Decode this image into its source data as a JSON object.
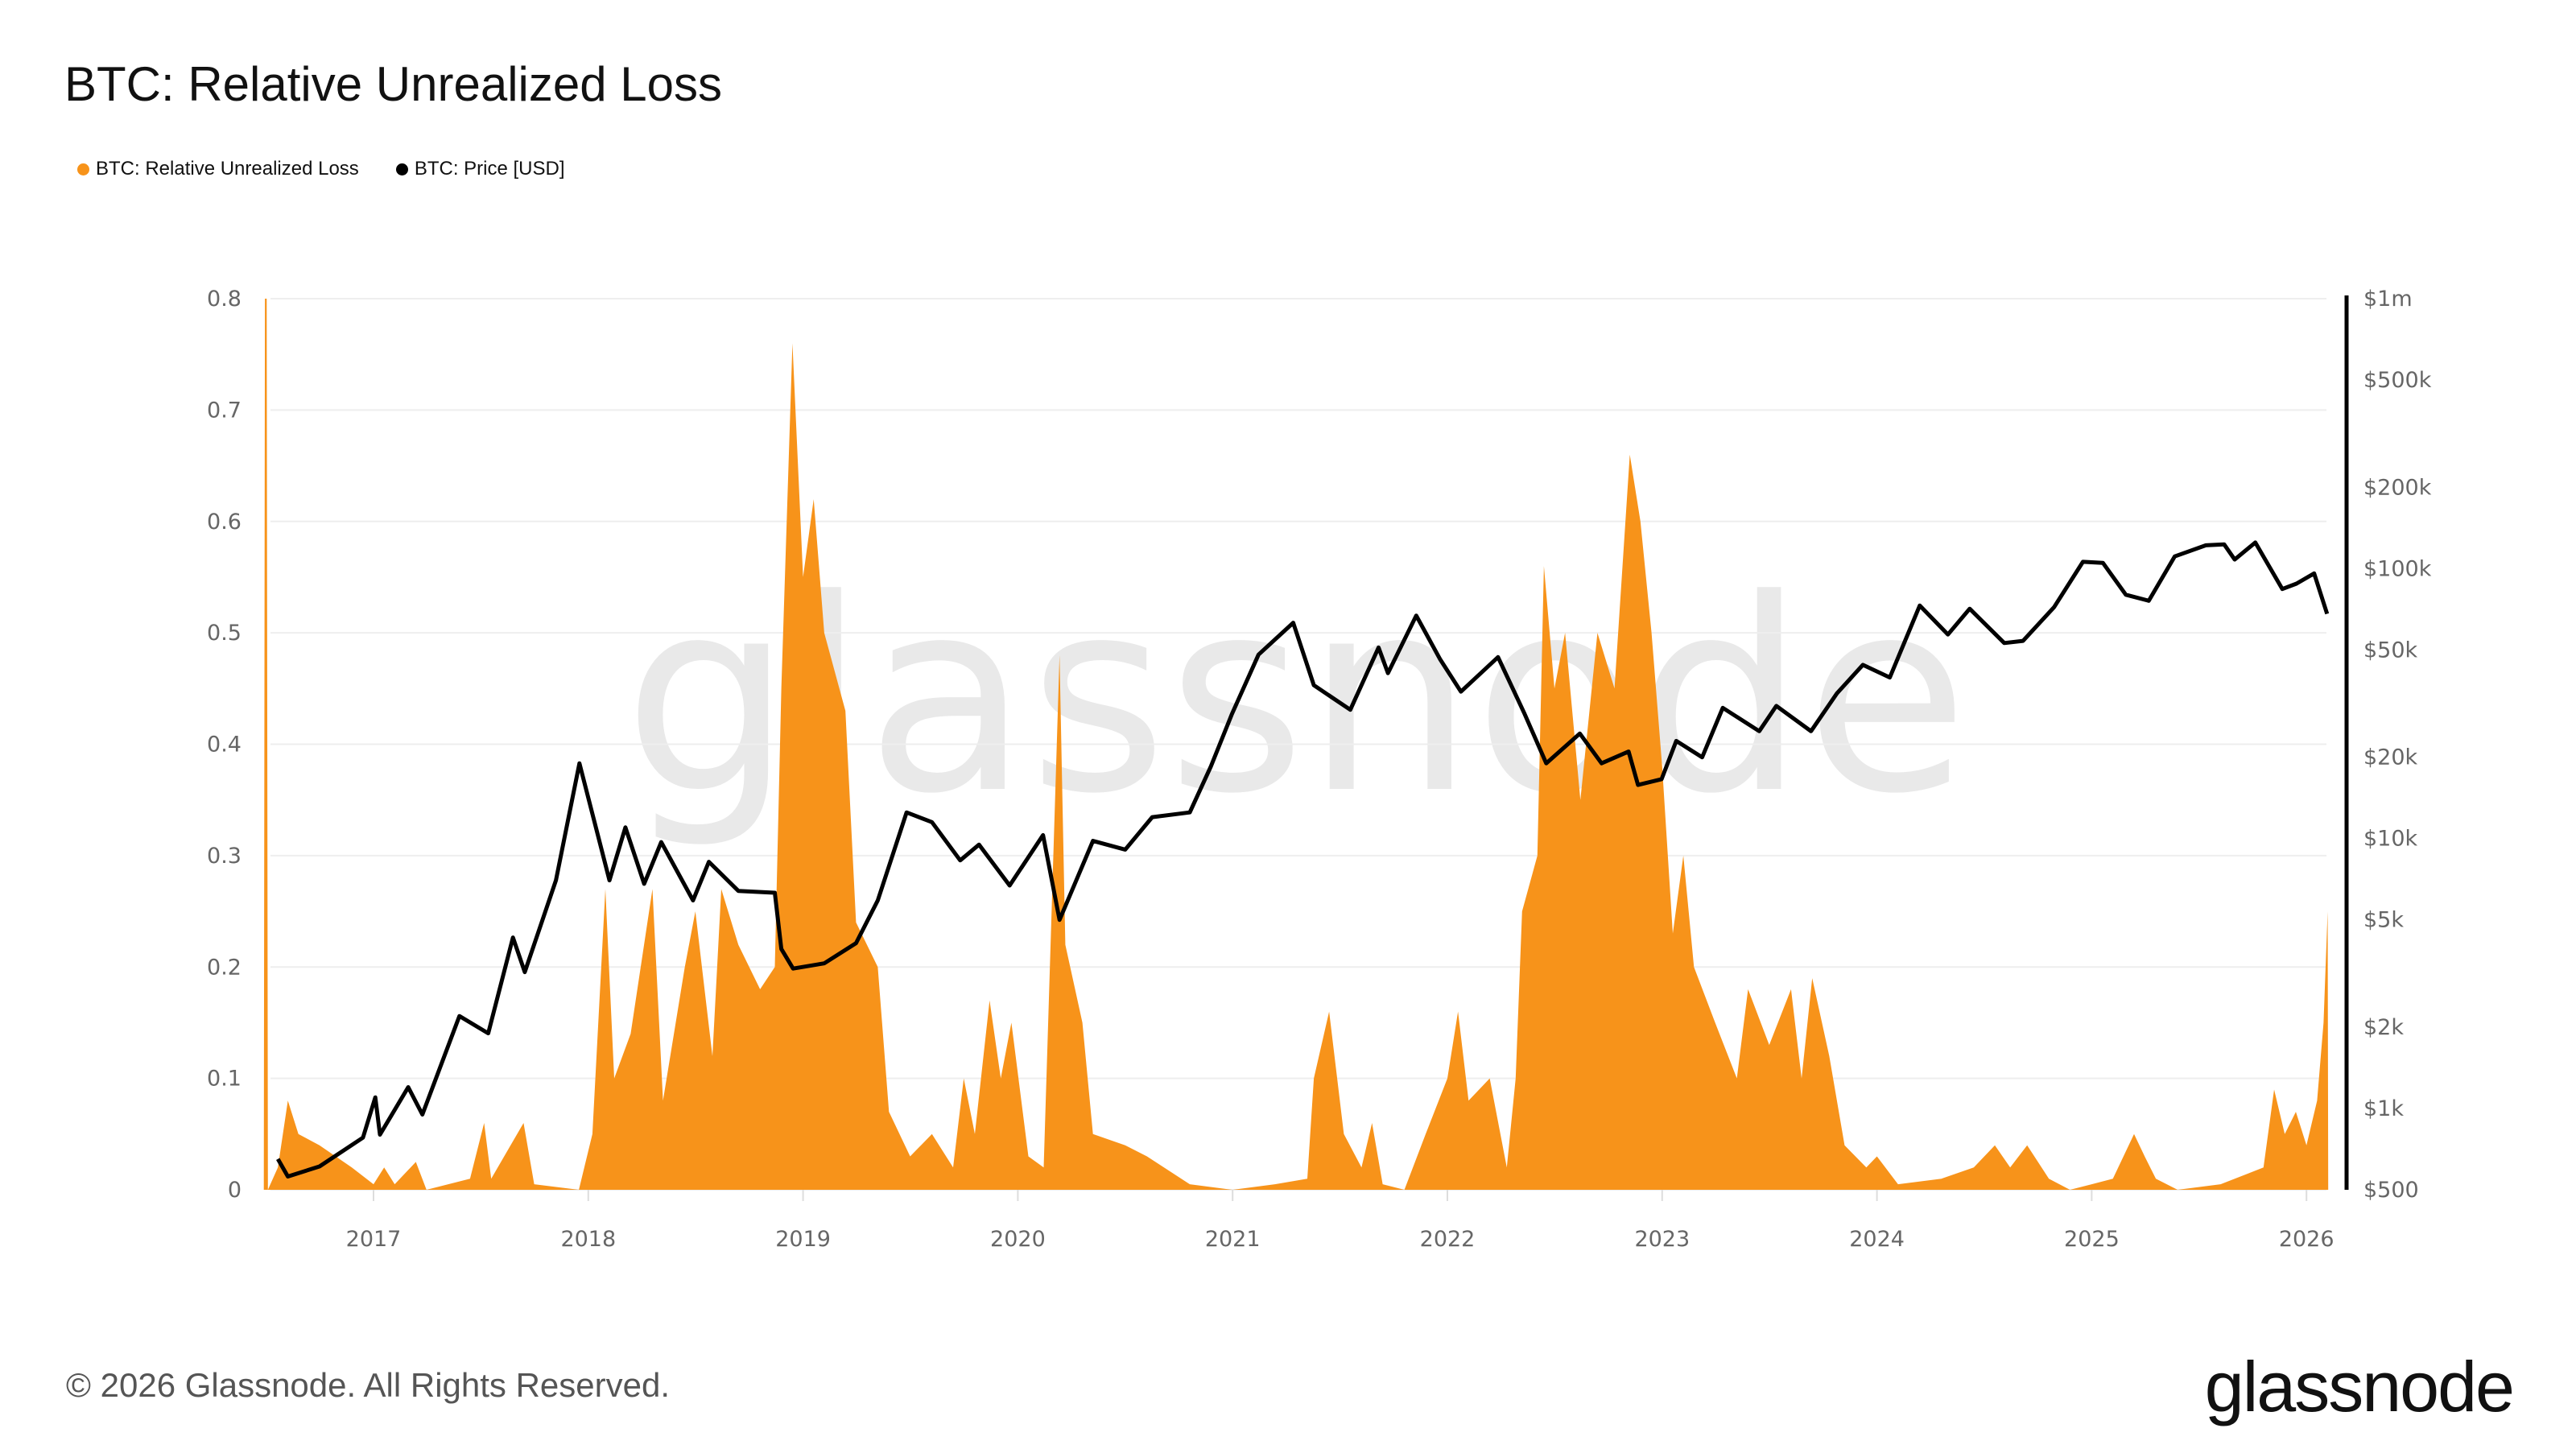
{
  "title": "BTC: Relative Unrealized Loss",
  "legend": [
    {
      "label": "BTC: Relative Unrealized Loss",
      "color": "#f7931a"
    },
    {
      "label": "BTC: Price [USD]",
      "color": "#000000"
    }
  ],
  "watermark": "glassnode",
  "footer": {
    "copyright": "© 2026 Glassnode. All Rights Reserved.",
    "logo": "glassnode"
  },
  "chart_data": {
    "type": "area",
    "title": "BTC: Relative Unrealized Loss",
    "xlabel": "",
    "ylabel": "",
    "x_ticks": [
      "2017",
      "2018",
      "2019",
      "2020",
      "2021",
      "2022",
      "2023",
      "2024",
      "2025",
      "2026"
    ],
    "y_left": {
      "ylim": [
        0,
        0.8
      ],
      "ticks": [
        "0",
        "0.1",
        "0.2",
        "0.3",
        "0.4",
        "0.5",
        "0.6",
        "0.7",
        "0.8"
      ]
    },
    "y_right": {
      "scale": "log",
      "ylim": [
        500,
        1000000
      ],
      "ticks": [
        {
          "value": 500,
          "label": "$500"
        },
        {
          "value": 1000,
          "label": "$1k"
        },
        {
          "value": 2000,
          "label": "$2k"
        },
        {
          "value": 5000,
          "label": "$5k"
        },
        {
          "value": 10000,
          "label": "$10k"
        },
        {
          "value": 20000,
          "label": "$20k"
        },
        {
          "value": 50000,
          "label": "$50k"
        },
        {
          "value": 100000,
          "label": "$100k"
        },
        {
          "value": 200000,
          "label": "$200k"
        },
        {
          "value": 500000,
          "label": "$500k"
        },
        {
          "value": 1000000,
          "label": "$1m"
        }
      ]
    },
    "grid": true,
    "legend_position": "top-left",
    "series": [
      {
        "name": "BTC: Relative Unrealized Loss",
        "type": "area",
        "axis": "left",
        "color": "#f7931a",
        "points": [
          [
            "2016-06-28",
            0
          ],
          [
            "2016-06-30",
            0.8
          ],
          [
            "2016-07-03",
            0.8
          ],
          [
            "2016-07-05",
            0
          ],
          [
            "2016-07-22",
            0.02
          ],
          [
            "2016-08-08",
            0.08
          ],
          [
            "2016-08-26",
            0.05
          ],
          [
            "2016-10-01",
            0.04
          ],
          [
            "2016-11-25",
            0.02
          ],
          [
            "2017-01-01",
            0.005
          ],
          [
            "2017-01-19",
            0.02
          ],
          [
            "2017-02-06",
            0.005
          ],
          [
            "2017-03-14",
            0.025
          ],
          [
            "2017-04-01",
            0
          ],
          [
            "2017-06-14",
            0.01
          ],
          [
            "2017-07-08",
            0.06
          ],
          [
            "2017-07-20",
            0.01
          ],
          [
            "2017-09-13",
            0.06
          ],
          [
            "2017-10-01",
            0.005
          ],
          [
            "2017-12-16",
            0
          ],
          [
            "2018-01-08",
            0.05
          ],
          [
            "2018-01-30",
            0.27
          ],
          [
            "2018-02-14",
            0.1
          ],
          [
            "2018-03-14",
            0.14
          ],
          [
            "2018-04-20",
            0.27
          ],
          [
            "2018-05-08",
            0.08
          ],
          [
            "2018-06-14",
            0.2
          ],
          [
            "2018-07-02",
            0.25
          ],
          [
            "2018-07-31",
            0.12
          ],
          [
            "2018-08-15",
            0.27
          ],
          [
            "2018-09-13",
            0.22
          ],
          [
            "2018-10-20",
            0.18
          ],
          [
            "2018-11-14",
            0.2
          ],
          [
            "2018-11-25",
            0.45
          ],
          [
            "2018-12-14",
            0.76
          ],
          [
            "2019-01-01",
            0.55
          ],
          [
            "2019-01-19",
            0.62
          ],
          [
            "2019-02-06",
            0.5
          ],
          [
            "2019-03-14",
            0.43
          ],
          [
            "2019-04-01",
            0.24
          ],
          [
            "2019-05-08",
            0.2
          ],
          [
            "2019-05-27",
            0.07
          ],
          [
            "2019-07-02",
            0.03
          ],
          [
            "2019-08-08",
            0.05
          ],
          [
            "2019-09-13",
            0.02
          ],
          [
            "2019-10-01",
            0.1
          ],
          [
            "2019-10-20",
            0.05
          ],
          [
            "2019-11-14",
            0.17
          ],
          [
            "2019-12-03",
            0.1
          ],
          [
            "2019-12-21",
            0.15
          ],
          [
            "2020-01-19",
            0.03
          ],
          [
            "2020-02-14",
            0.02
          ],
          [
            "2020-03-12",
            0.48
          ],
          [
            "2020-03-22",
            0.22
          ],
          [
            "2020-04-20",
            0.15
          ],
          [
            "2020-05-08",
            0.05
          ],
          [
            "2020-07-02",
            0.04
          ],
          [
            "2020-08-08",
            0.03
          ],
          [
            "2020-10-20",
            0.005
          ],
          [
            "2021-01-01",
            0
          ],
          [
            "2021-03-14",
            0.005
          ],
          [
            "2021-05-08",
            0.01
          ],
          [
            "2021-05-19",
            0.1
          ],
          [
            "2021-06-14",
            0.16
          ],
          [
            "2021-07-09",
            0.05
          ],
          [
            "2021-08-08",
            0.02
          ],
          [
            "2021-08-26",
            0.06
          ],
          [
            "2021-09-13",
            0.005
          ],
          [
            "2021-10-20",
            0
          ],
          [
            "2021-11-25",
            0.05
          ],
          [
            "2022-01-01",
            0.1
          ],
          [
            "2022-01-19",
            0.16
          ],
          [
            "2022-02-06",
            0.08
          ],
          [
            "2022-03-14",
            0.1
          ],
          [
            "2022-04-12",
            0.02
          ],
          [
            "2022-04-27",
            0.1
          ],
          [
            "2022-05-08",
            0.25
          ],
          [
            "2022-06-03",
            0.3
          ],
          [
            "2022-06-14",
            0.56
          ],
          [
            "2022-07-02",
            0.45
          ],
          [
            "2022-07-20",
            0.5
          ],
          [
            "2022-08-15",
            0.35
          ],
          [
            "2022-09-13",
            0.5
          ],
          [
            "2022-10-12",
            0.45
          ],
          [
            "2022-11-07",
            0.66
          ],
          [
            "2022-11-25",
            0.6
          ],
          [
            "2022-12-14",
            0.5
          ],
          [
            "2023-01-01",
            0.38
          ],
          [
            "2023-01-19",
            0.23
          ],
          [
            "2023-02-06",
            0.3
          ],
          [
            "2023-02-24",
            0.2
          ],
          [
            "2023-04-01",
            0.15
          ],
          [
            "2023-05-08",
            0.1
          ],
          [
            "2023-05-27",
            0.18
          ],
          [
            "2023-07-02",
            0.13
          ],
          [
            "2023-08-08",
            0.18
          ],
          [
            "2023-08-26",
            0.1
          ],
          [
            "2023-09-13",
            0.19
          ],
          [
            "2023-10-12",
            0.12
          ],
          [
            "2023-11-07",
            0.04
          ],
          [
            "2023-12-14",
            0.02
          ],
          [
            "2024-01-01",
            0.03
          ],
          [
            "2024-02-06",
            0.005
          ],
          [
            "2024-04-20",
            0.01
          ],
          [
            "2024-06-14",
            0.02
          ],
          [
            "2024-07-20",
            0.04
          ],
          [
            "2024-08-15",
            0.02
          ],
          [
            "2024-09-13",
            0.04
          ],
          [
            "2024-10-20",
            0.01
          ],
          [
            "2024-11-25",
            0
          ],
          [
            "2025-01-01",
            0.005
          ],
          [
            "2025-02-06",
            0.01
          ],
          [
            "2025-03-14",
            0.05
          ],
          [
            "2025-04-01",
            0.03
          ],
          [
            "2025-04-20",
            0.01
          ],
          [
            "2025-05-27",
            0
          ],
          [
            "2025-08-08",
            0.005
          ],
          [
            "2025-10-20",
            0.02
          ],
          [
            "2025-11-07",
            0.09
          ],
          [
            "2025-11-25",
            0.05
          ],
          [
            "2025-12-14",
            0.07
          ],
          [
            "2026-01-01",
            0.04
          ],
          [
            "2026-01-19",
            0.08
          ],
          [
            "2026-01-30",
            0.15
          ],
          [
            "2026-02-06",
            0.25
          ],
          [
            "2026-02-07",
            0
          ]
        ]
      },
      {
        "name": "BTC: Price [USD]",
        "type": "line",
        "axis": "right",
        "color": "#000000",
        "points": [
          [
            "2016-07-22",
            650
          ],
          [
            "2016-08-08",
            560
          ],
          [
            "2016-10-01",
            610
          ],
          [
            "2016-12-14",
            780
          ],
          [
            "2017-01-04",
            1100
          ],
          [
            "2017-01-12",
            800
          ],
          [
            "2017-03-01",
            1200
          ],
          [
            "2017-03-25",
            950
          ],
          [
            "2017-05-27",
            2200
          ],
          [
            "2017-07-15",
            1900
          ],
          [
            "2017-08-26",
            4300
          ],
          [
            "2017-09-15",
            3200
          ],
          [
            "2017-11-07",
            7000
          ],
          [
            "2017-12-17",
            19000
          ],
          [
            "2018-02-06",
            7000
          ],
          [
            "2018-03-05",
            11000
          ],
          [
            "2018-04-06",
            6800
          ],
          [
            "2018-05-05",
            9700
          ],
          [
            "2018-06-28",
            5900
          ],
          [
            "2018-07-25",
            8200
          ],
          [
            "2018-09-13",
            6400
          ],
          [
            "2018-11-14",
            6300
          ],
          [
            "2018-11-25",
            3900
          ],
          [
            "2018-12-15",
            3300
          ],
          [
            "2019-02-06",
            3450
          ],
          [
            "2019-04-01",
            4100
          ],
          [
            "2019-05-08",
            5900
          ],
          [
            "2019-06-26",
            12500
          ],
          [
            "2019-08-08",
            11500
          ],
          [
            "2019-09-25",
            8300
          ],
          [
            "2019-10-27",
            9500
          ],
          [
            "2019-12-18",
            6700
          ],
          [
            "2020-02-13",
            10300
          ],
          [
            "2020-03-12",
            5000
          ],
          [
            "2020-05-08",
            9800
          ],
          [
            "2020-07-02",
            9100
          ],
          [
            "2020-08-17",
            12000
          ],
          [
            "2020-10-20",
            12500
          ],
          [
            "2020-11-25",
            18500
          ],
          [
            "2020-12-31",
            29000
          ],
          [
            "2021-02-14",
            48000
          ],
          [
            "2021-04-14",
            63000
          ],
          [
            "2021-05-19",
            37000
          ],
          [
            "2021-07-20",
            30000
          ],
          [
            "2021-09-06",
            51000
          ],
          [
            "2021-09-22",
            41000
          ],
          [
            "2021-11-09",
            67000
          ],
          [
            "2021-12-20",
            46000
          ],
          [
            "2022-01-24",
            35000
          ],
          [
            "2022-03-28",
            47000
          ],
          [
            "2022-05-12",
            29000
          ],
          [
            "2022-06-18",
            19000
          ],
          [
            "2022-08-14",
            24500
          ],
          [
            "2022-09-20",
            19000
          ],
          [
            "2022-11-05",
            21000
          ],
          [
            "2022-11-21",
            15800
          ],
          [
            "2022-12-31",
            16600
          ],
          [
            "2023-01-25",
            23000
          ],
          [
            "2023-03-10",
            20000
          ],
          [
            "2023-04-14",
            30500
          ],
          [
            "2023-06-15",
            25000
          ],
          [
            "2023-07-14",
            31000
          ],
          [
            "2023-09-11",
            25000
          ],
          [
            "2023-10-25",
            34500
          ],
          [
            "2023-12-08",
            44000
          ],
          [
            "2024-01-23",
            39500
          ],
          [
            "2024-03-14",
            73000
          ],
          [
            "2024-05-01",
            57000
          ],
          [
            "2024-06-07",
            71000
          ],
          [
            "2024-08-05",
            53000
          ],
          [
            "2024-09-06",
            54000
          ],
          [
            "2024-10-29",
            72000
          ],
          [
            "2024-12-17",
            106000
          ],
          [
            "2025-01-20",
            105000
          ],
          [
            "2025-02-28",
            80000
          ],
          [
            "2025-04-08",
            76000
          ],
          [
            "2025-05-22",
            111000
          ],
          [
            "2025-07-14",
            122000
          ],
          [
            "2025-08-14",
            123000
          ],
          [
            "2025-09-01",
            108000
          ],
          [
            "2025-10-06",
            125000
          ],
          [
            "2025-11-21",
            84000
          ],
          [
            "2025-12-15",
            88000
          ],
          [
            "2026-01-14",
            96000
          ],
          [
            "2026-02-05",
            68000
          ]
        ]
      }
    ]
  }
}
